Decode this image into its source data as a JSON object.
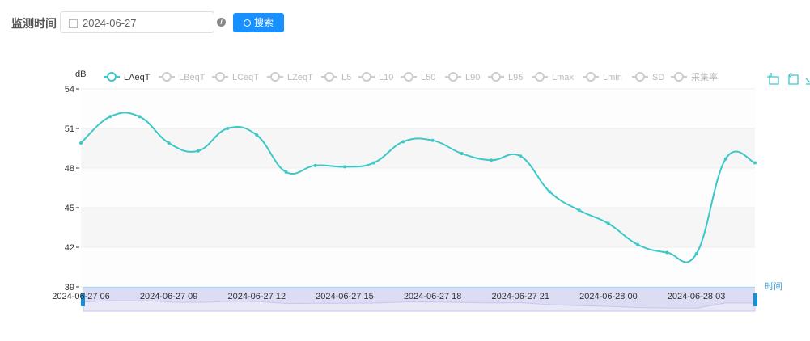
{
  "filter": {
    "label": "监测时间",
    "date_value": "2024-06-27",
    "info_icon": "info-icon",
    "search_label": "搜索"
  },
  "toolbox": {
    "icons": [
      "zoom-icon",
      "zoom-reset-icon",
      "restore-icon"
    ],
    "color": "#3cc8c8"
  },
  "chart_data": {
    "type": "line",
    "ylabel": "dB",
    "xlabel": "时间",
    "ylim": [
      39,
      54
    ],
    "yticks": [
      39,
      42,
      45,
      48,
      51,
      54
    ],
    "xticks": [
      "2024-06-27 06",
      "2024-06-27 09",
      "2024-06-27 12",
      "2024-06-27 15",
      "2024-06-27 18",
      "2024-06-27 21",
      "2024-06-28 00",
      "2024-06-28 03"
    ],
    "legend": [
      "LAeqT",
      "LBeqT",
      "LCeqT",
      "LZeqT",
      "L5",
      "L10",
      "L50",
      "L90",
      "L95",
      "Lmax",
      "Lmin",
      "SD",
      "采集率"
    ],
    "legend_active": [
      "LAeqT"
    ],
    "legend_placement": "top",
    "grid": true,
    "series": [
      {
        "name": "LAeqT",
        "color": "#3cc8c8",
        "x": [
          "2024-06-27 06",
          "07",
          "08",
          "09",
          "10",
          "11",
          "12",
          "13",
          "14",
          "15",
          "16",
          "17",
          "18",
          "19",
          "20",
          "21",
          "22",
          "23",
          "2024-06-28 00",
          "01",
          "02",
          "03",
          "04",
          "05"
        ],
        "values": [
          49.9,
          51.9,
          51.9,
          49.9,
          49.3,
          51.0,
          50.5,
          47.7,
          48.2,
          48.1,
          48.4,
          50.0,
          50.1,
          49.1,
          48.6,
          48.9,
          46.2,
          44.8,
          43.8,
          42.2,
          41.6,
          41.5,
          48.7,
          48.4
        ]
      }
    ],
    "datazoom": {
      "start": 0,
      "end": 100
    }
  }
}
